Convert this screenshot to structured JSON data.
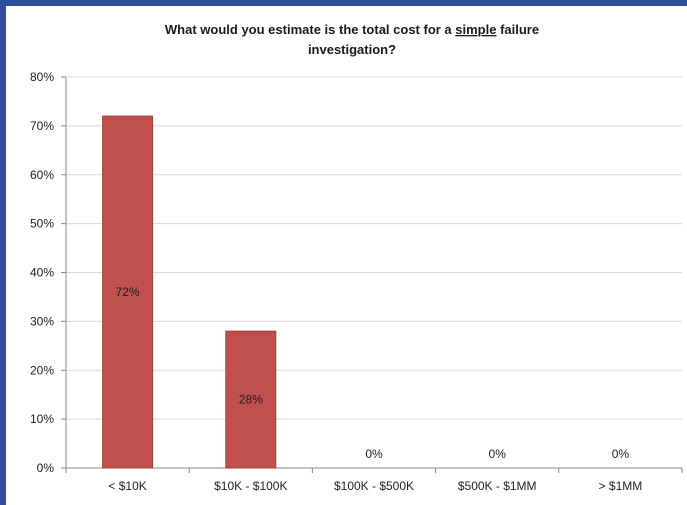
{
  "chart_data": {
    "type": "bar",
    "title_parts": [
      {
        "text": "What would you estimate is the total cost for a ",
        "underline": false
      },
      {
        "text": "simple",
        "underline": true
      },
      {
        "text": " failure",
        "underline": false
      }
    ],
    "title_line2": "investigation?",
    "categories": [
      "< $10K",
      "$10K - $100K",
      "$100K - $500K",
      "$500K - $1MM",
      "> $1MM"
    ],
    "values": [
      72,
      28,
      0,
      0,
      0
    ],
    "data_labels": [
      "72%",
      "28%",
      "0%",
      "0%",
      "0%"
    ],
    "ylim": [
      0,
      80
    ],
    "yticks": [
      0,
      10,
      20,
      30,
      40,
      50,
      60,
      70,
      80
    ],
    "ytick_labels": [
      "0%",
      "10%",
      "20%",
      "30%",
      "40%",
      "50%",
      "60%",
      "70%",
      "80%"
    ],
    "grid": true,
    "bar_color": "#c0504d",
    "bar_edge_color": "#a33f3c",
    "grid_color": "#d9d9d9"
  }
}
